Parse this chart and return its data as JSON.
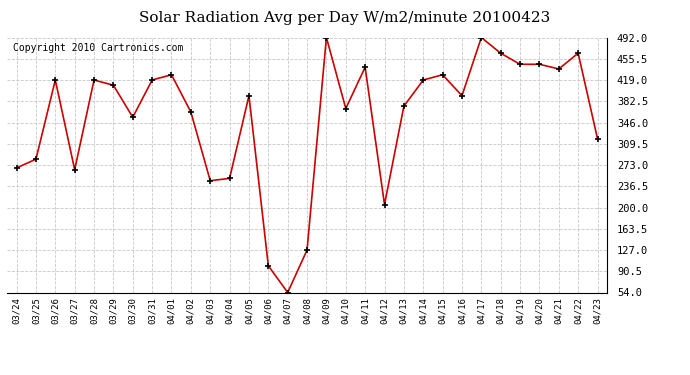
{
  "title": "Solar Radiation Avg per Day W/m2/minute 20100423",
  "copyright_text": "Copyright 2010 Cartronics.com",
  "labels": [
    "03/24",
    "03/25",
    "03/26",
    "03/27",
    "03/28",
    "03/29",
    "03/30",
    "03/31",
    "04/01",
    "04/02",
    "04/03",
    "04/04",
    "04/05",
    "04/06",
    "04/07",
    "04/08",
    "04/09",
    "04/10",
    "04/11",
    "04/12",
    "04/13",
    "04/14",
    "04/15",
    "04/16",
    "04/17",
    "04/18",
    "04/19",
    "04/20",
    "04/21",
    "04/22",
    "04/23"
  ],
  "values": [
    268,
    283,
    419,
    265,
    419,
    410,
    355,
    419,
    428,
    364,
    246,
    250,
    392,
    100,
    54,
    127,
    492,
    370,
    441,
    205,
    374,
    419,
    428,
    392,
    492,
    465,
    446,
    446,
    438,
    465,
    318
  ],
  "line_color": "#cc0000",
  "marker_color": "#000000",
  "bg_color": "#ffffff",
  "plot_bg_color": "#ffffff",
  "grid_color": "#c8c8c8",
  "yticks": [
    54.0,
    90.5,
    127.0,
    163.5,
    200.0,
    236.5,
    273.0,
    309.5,
    346.0,
    382.5,
    419.0,
    455.5,
    492.0
  ],
  "ylim": [
    54.0,
    492.0
  ],
  "title_fontsize": 11,
  "copyright_fontsize": 7,
  "xlabel_fontsize": 6.5,
  "ylabel_fontsize": 7.5
}
